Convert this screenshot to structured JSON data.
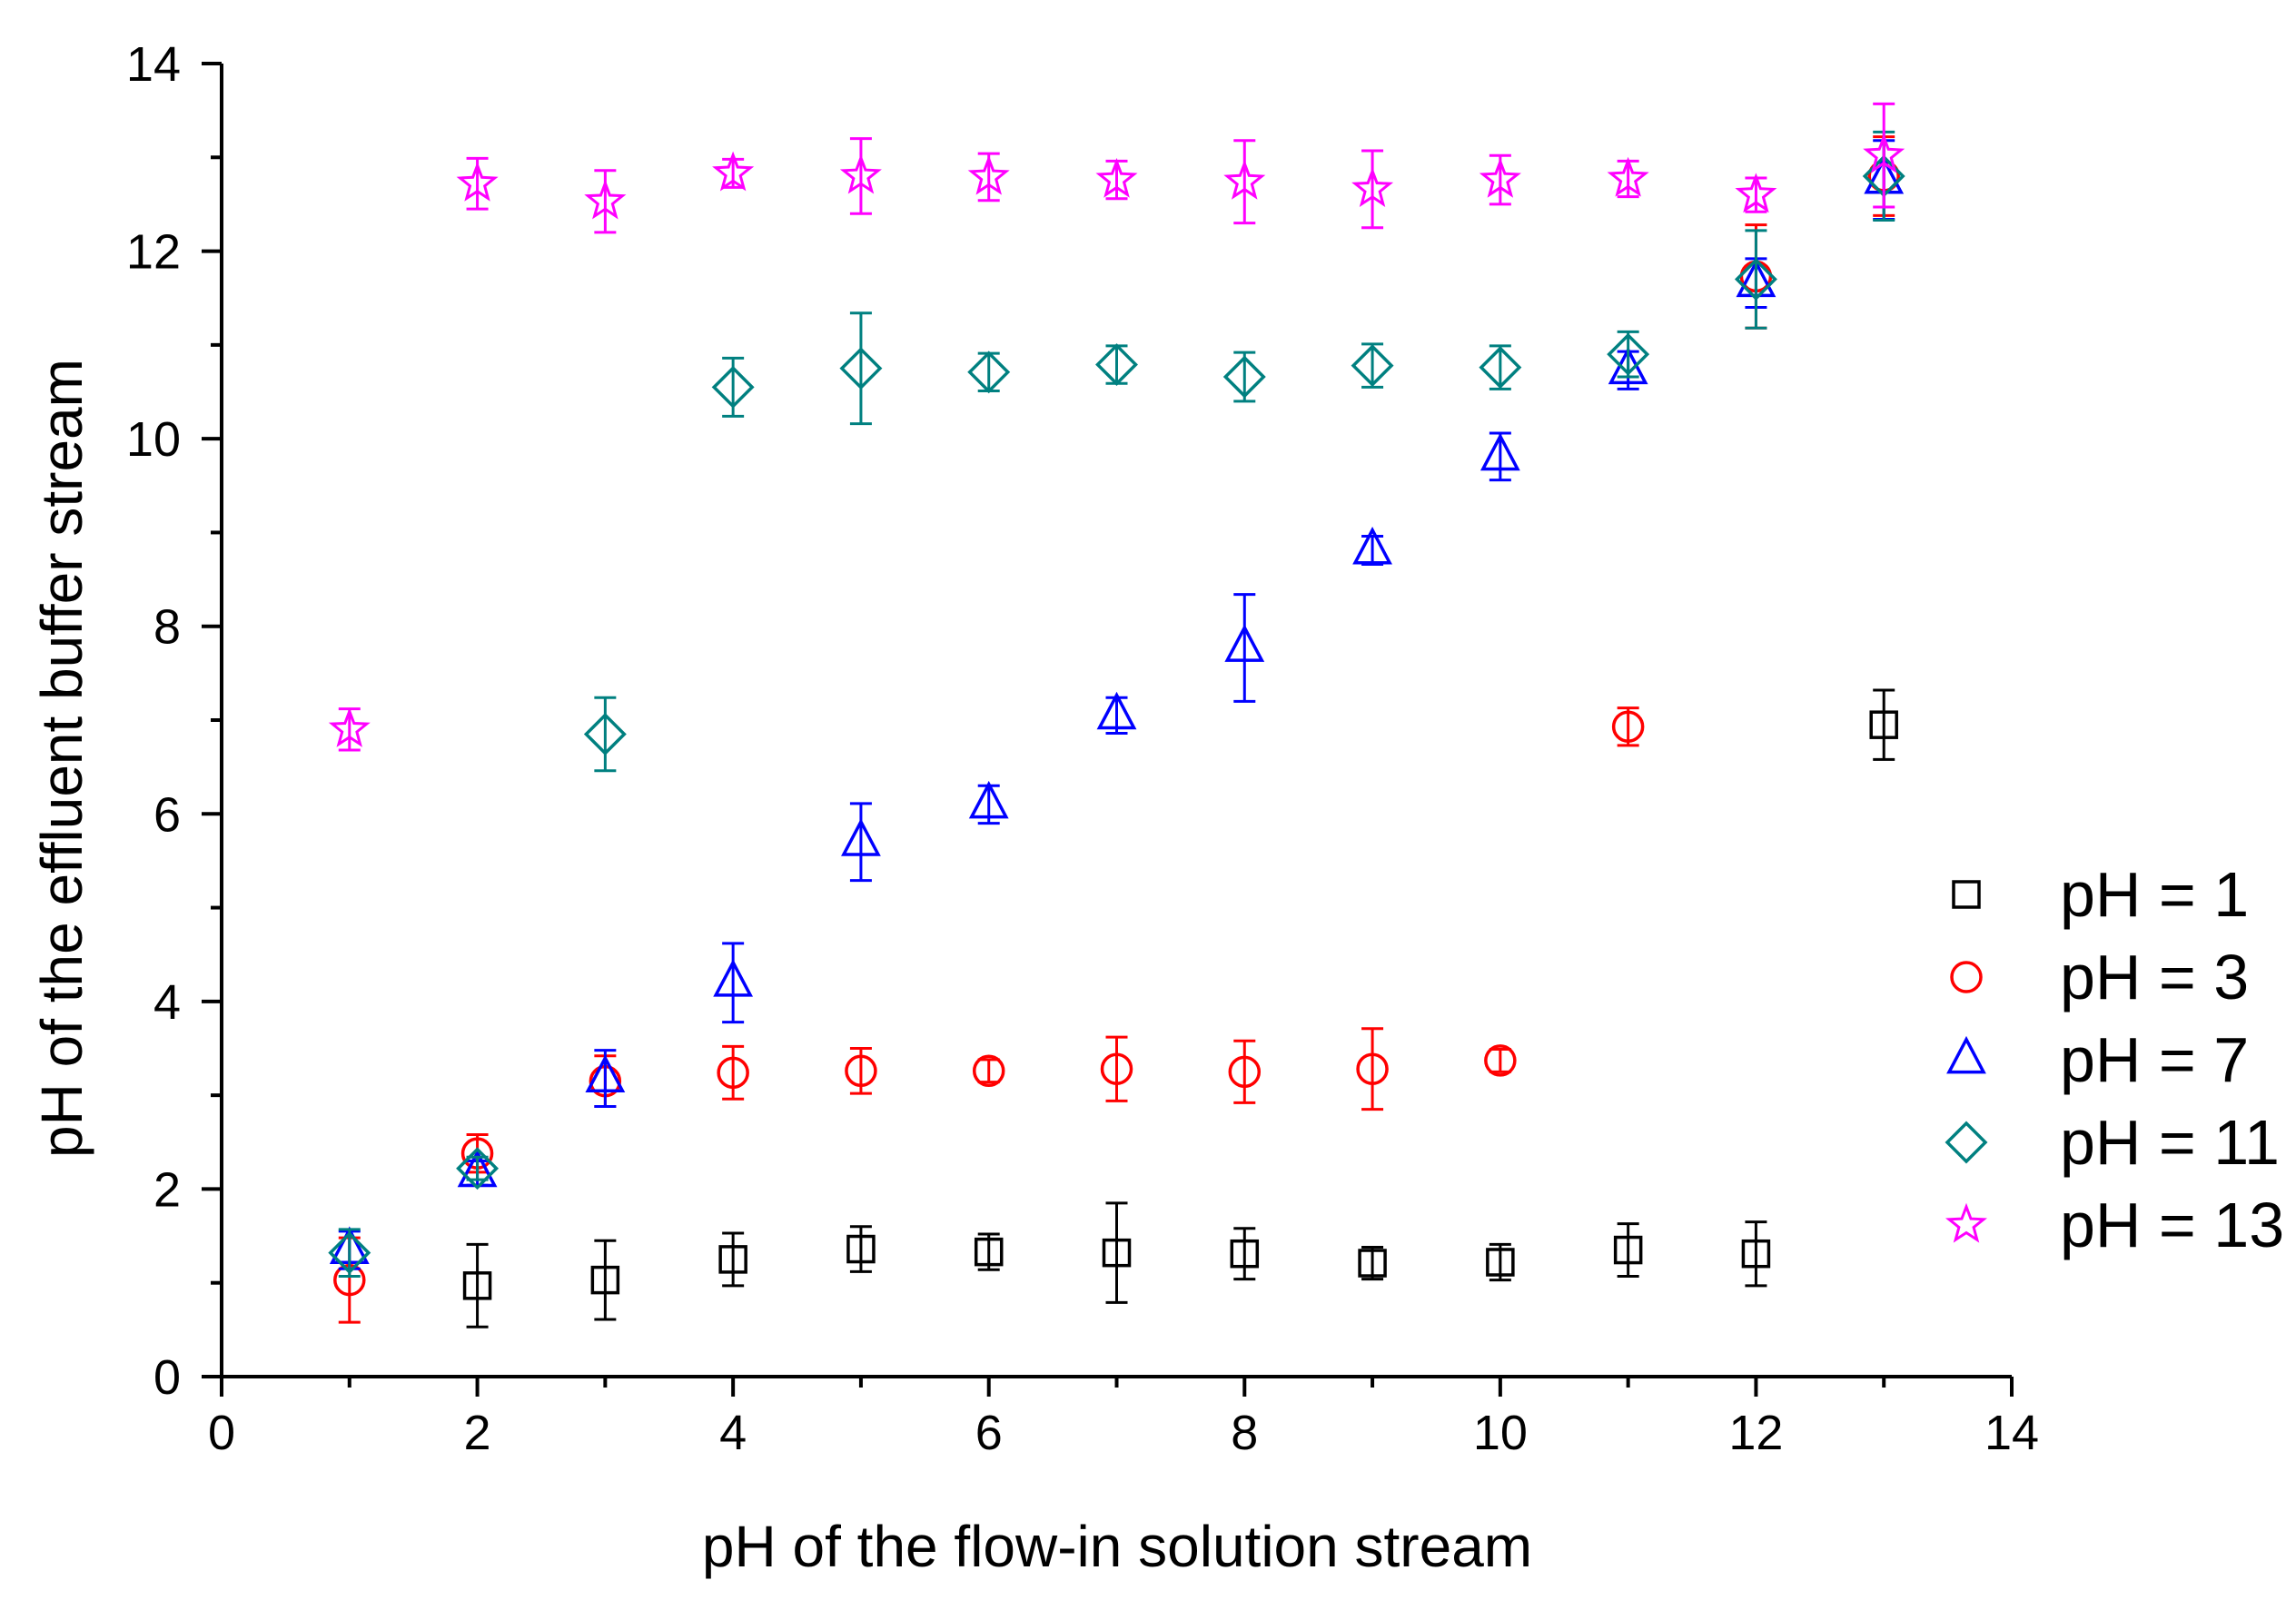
{
  "chart_data": {
    "type": "scatter",
    "title": "",
    "xlabel": "pH of the flow-in solution stream",
    "ylabel": "pH of the effluent buffer stream",
    "xlim": [
      0,
      14
    ],
    "ylim": [
      0,
      14
    ],
    "x_ticks": [
      "0",
      "2",
      "4",
      "6",
      "8",
      "10",
      "12",
      "14"
    ],
    "y_ticks": [
      "0",
      "2",
      "4",
      "6",
      "8",
      "10",
      "12",
      "14"
    ],
    "grid": false,
    "legend_position": "right",
    "error_bars": true,
    "series": [
      {
        "name": "pH = 1",
        "marker": "square",
        "color": "#000000",
        "points": [
          {
            "x": 2,
            "y": 0.97,
            "err": 0.44
          },
          {
            "x": 3,
            "y": 1.03,
            "err": 0.42
          },
          {
            "x": 4,
            "y": 1.25,
            "err": 0.28
          },
          {
            "x": 5,
            "y": 1.36,
            "err": 0.24
          },
          {
            "x": 6,
            "y": 1.33,
            "err": 0.19
          },
          {
            "x": 7,
            "y": 1.32,
            "err": 0.53
          },
          {
            "x": 8,
            "y": 1.31,
            "err": 0.27
          },
          {
            "x": 9,
            "y": 1.21,
            "err": 0.17
          },
          {
            "x": 10,
            "y": 1.22,
            "err": 0.19
          },
          {
            "x": 11,
            "y": 1.35,
            "err": 0.28
          },
          {
            "x": 12,
            "y": 1.31,
            "err": 0.34
          },
          {
            "x": 13,
            "y": 6.95,
            "err": 0.37
          }
        ]
      },
      {
        "name": "pH = 3",
        "marker": "circle",
        "color": "#ff0000",
        "points": [
          {
            "x": 1,
            "y": 1.03,
            "err": 0.45
          },
          {
            "x": 2,
            "y": 2.38,
            "err": 0.2
          },
          {
            "x": 3,
            "y": 3.15,
            "err": 0.27
          },
          {
            "x": 4,
            "y": 3.24,
            "err": 0.28
          },
          {
            "x": 5,
            "y": 3.26,
            "err": 0.24
          },
          {
            "x": 6,
            "y": 3.26,
            "err": 0.12
          },
          {
            "x": 7,
            "y": 3.28,
            "err": 0.34
          },
          {
            "x": 8,
            "y": 3.25,
            "err": 0.33
          },
          {
            "x": 9,
            "y": 3.28,
            "err": 0.43
          },
          {
            "x": 10,
            "y": 3.37,
            "err": 0.12
          },
          {
            "x": 11,
            "y": 6.93,
            "err": 0.2
          },
          {
            "x": 12,
            "y": 11.73,
            "err": 0.55
          },
          {
            "x": 13,
            "y": 12.8,
            "err": 0.42
          }
        ]
      },
      {
        "name": "pH = 7",
        "marker": "triangle",
        "color": "#0000ff",
        "points": [
          {
            "x": 1,
            "y": 1.35,
            "err": 0.2
          },
          {
            "x": 2,
            "y": 2.17,
            "err": 0.13
          },
          {
            "x": 3,
            "y": 3.18,
            "err": 0.3
          },
          {
            "x": 4,
            "y": 4.2,
            "err": 0.42
          },
          {
            "x": 5,
            "y": 5.7,
            "err": 0.41
          },
          {
            "x": 6,
            "y": 6.1,
            "err": 0.2
          },
          {
            "x": 7,
            "y": 7.05,
            "err": 0.19
          },
          {
            "x": 8,
            "y": 7.77,
            "err": 0.57
          },
          {
            "x": 9,
            "y": 8.81,
            "err": 0.15
          },
          {
            "x": 10,
            "y": 9.81,
            "err": 0.25
          },
          {
            "x": 11,
            "y": 10.73,
            "err": 0.2
          },
          {
            "x": 12,
            "y": 11.66,
            "err": 0.26
          },
          {
            "x": 13,
            "y": 12.76,
            "err": 0.42
          }
        ]
      },
      {
        "name": "pH = 11",
        "marker": "diamond",
        "color": "#008080",
        "points": [
          {
            "x": 1,
            "y": 1.32,
            "err": 0.25
          },
          {
            "x": 2,
            "y": 2.22,
            "err": 0.12
          },
          {
            "x": 3,
            "y": 6.85,
            "err": 0.39
          },
          {
            "x": 4,
            "y": 10.55,
            "err": 0.31
          },
          {
            "x": 5,
            "y": 10.75,
            "err": 0.59
          },
          {
            "x": 6,
            "y": 10.71,
            "err": 0.2
          },
          {
            "x": 7,
            "y": 10.79,
            "err": 0.2
          },
          {
            "x": 8,
            "y": 10.66,
            "err": 0.26
          },
          {
            "x": 9,
            "y": 10.78,
            "err": 0.23
          },
          {
            "x": 10,
            "y": 10.76,
            "err": 0.23
          },
          {
            "x": 11,
            "y": 10.9,
            "err": 0.24
          },
          {
            "x": 12,
            "y": 11.7,
            "err": 0.52
          },
          {
            "x": 13,
            "y": 12.8,
            "err": 0.47
          }
        ]
      },
      {
        "name": "pH = 13",
        "marker": "star",
        "color": "#ff00ff",
        "points": [
          {
            "x": 1,
            "y": 6.9,
            "err": 0.22
          },
          {
            "x": 2,
            "y": 12.72,
            "err": 0.27
          },
          {
            "x": 3,
            "y": 12.53,
            "err": 0.33
          },
          {
            "x": 4,
            "y": 12.83,
            "err": 0.15
          },
          {
            "x": 5,
            "y": 12.8,
            "err": 0.4
          },
          {
            "x": 6,
            "y": 12.79,
            "err": 0.25
          },
          {
            "x": 7,
            "y": 12.76,
            "err": 0.2
          },
          {
            "x": 8,
            "y": 12.74,
            "err": 0.44
          },
          {
            "x": 9,
            "y": 12.66,
            "err": 0.41
          },
          {
            "x": 10,
            "y": 12.76,
            "err": 0.26
          },
          {
            "x": 11,
            "y": 12.77,
            "err": 0.19
          },
          {
            "x": 12,
            "y": 12.6,
            "err": 0.18
          },
          {
            "x": 13,
            "y": 13.02,
            "err": 0.55
          }
        ]
      }
    ]
  }
}
